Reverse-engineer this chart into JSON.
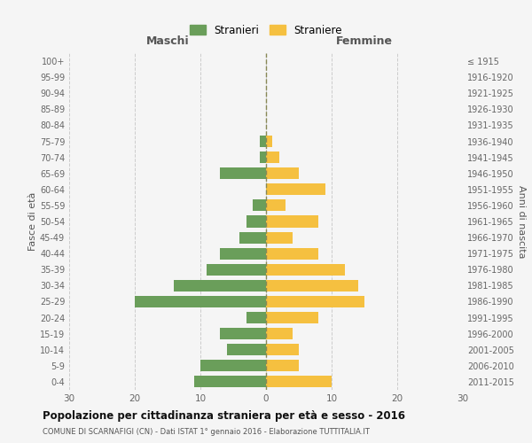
{
  "age_groups": [
    "0-4",
    "5-9",
    "10-14",
    "15-19",
    "20-24",
    "25-29",
    "30-34",
    "35-39",
    "40-44",
    "45-49",
    "50-54",
    "55-59",
    "60-64",
    "65-69",
    "70-74",
    "75-79",
    "80-84",
    "85-89",
    "90-94",
    "95-99",
    "100+"
  ],
  "birth_years": [
    "2011-2015",
    "2006-2010",
    "2001-2005",
    "1996-2000",
    "1991-1995",
    "1986-1990",
    "1981-1985",
    "1976-1980",
    "1971-1975",
    "1966-1970",
    "1961-1965",
    "1956-1960",
    "1951-1955",
    "1946-1950",
    "1941-1945",
    "1936-1940",
    "1931-1935",
    "1926-1930",
    "1921-1925",
    "1916-1920",
    "≤ 1915"
  ],
  "males": [
    11,
    10,
    6,
    7,
    3,
    20,
    14,
    9,
    7,
    4,
    3,
    2,
    0,
    7,
    1,
    1,
    0,
    0,
    0,
    0,
    0
  ],
  "females": [
    10,
    5,
    5,
    4,
    8,
    15,
    14,
    12,
    8,
    4,
    8,
    3,
    9,
    5,
    2,
    1,
    0,
    0,
    0,
    0,
    0
  ],
  "male_color": "#6a9e5a",
  "female_color": "#f5c040",
  "legend_male": "Stranieri",
  "legend_female": "Straniere",
  "title": "Popolazione per cittadinanza straniera per età e sesso - 2016",
  "subtitle": "COMUNE DI SCARNAFIGI (CN) - Dati ISTAT 1° gennaio 2016 - Elaborazione TUTTITALIA.IT",
  "ylabel_left": "Fasce di età",
  "ylabel_right": "Anni di nascita",
  "xlabel_left": "Maschi",
  "xlabel_right": "Femmine",
  "xlim": [
    -30,
    30
  ],
  "xticks": [
    -30,
    -20,
    -10,
    0,
    10,
    20,
    30
  ],
  "xticklabels": [
    "30",
    "20",
    "10",
    "0",
    "10",
    "20",
    "30"
  ],
  "background_color": "#f5f5f5",
  "grid_color": "#cccccc"
}
